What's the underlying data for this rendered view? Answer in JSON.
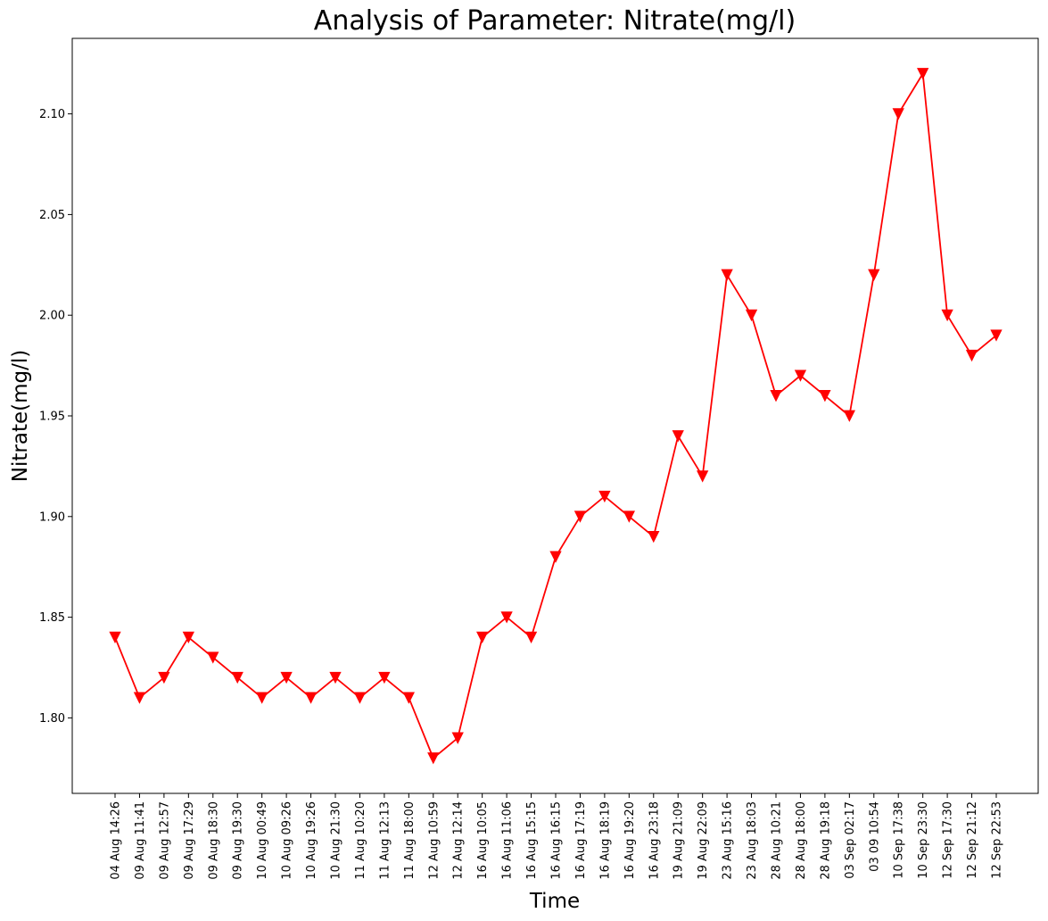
{
  "chart_data": {
    "type": "line",
    "title": "Analysis of Parameter: Nitrate(mg/l)",
    "xlabel": "Time",
    "ylabel": "Nitrate(mg/l)",
    "ylim": [
      1.7625,
      2.1375
    ],
    "yticks": [
      "1.80",
      "1.85",
      "1.90",
      "1.95",
      "2.00",
      "2.05",
      "2.10"
    ],
    "grid": false,
    "line_color": "#ff0000",
    "marker": "triangle-down",
    "categories": [
      "04 Aug 14:26",
      "09 Aug 11:41",
      "09 Aug 12:57",
      "09 Aug 17:29",
      "09 Aug 18:30",
      "09 Aug 19:30",
      "10 Aug 00:49",
      "10 Aug 09:26",
      "10 Aug 19:26",
      "10 Aug 21:30",
      "11 Aug 10:20",
      "11 Aug 12:13",
      "11 Aug 18:00",
      "12 Aug 10:59",
      "12 Aug 12:14",
      "16 Aug 10:05",
      "16 Aug 11:06",
      "16 Aug 15:15",
      "16 Aug 16:15",
      "16 Aug 17:19",
      "16 Aug 18:19",
      "16 Aug 19:20",
      "16 Aug 23:18",
      "19 Aug 21:09",
      "19 Aug 22:09",
      "23 Aug 15:16",
      "23 Aug 18:03",
      "28 Aug 10:21",
      "28 Aug 18:00",
      "28 Aug 19:18",
      "03 Sep 02:17",
      "03 09 10:54",
      "10 Sep 17:38",
      "10 Sep 23:30",
      "12 Sep 17:30",
      "12 Sep 21:12",
      "12 Sep 22:53"
    ],
    "values": [
      1.84,
      1.81,
      1.82,
      1.84,
      1.83,
      1.82,
      1.81,
      1.82,
      1.81,
      1.82,
      1.81,
      1.82,
      1.81,
      1.78,
      1.79,
      1.84,
      1.85,
      1.84,
      1.88,
      1.9,
      1.91,
      1.9,
      1.89,
      1.94,
      1.92,
      2.02,
      2.0,
      1.96,
      1.97,
      1.96,
      1.95,
      2.02,
      2.1,
      2.12,
      2.0,
      1.98,
      1.99
    ]
  }
}
